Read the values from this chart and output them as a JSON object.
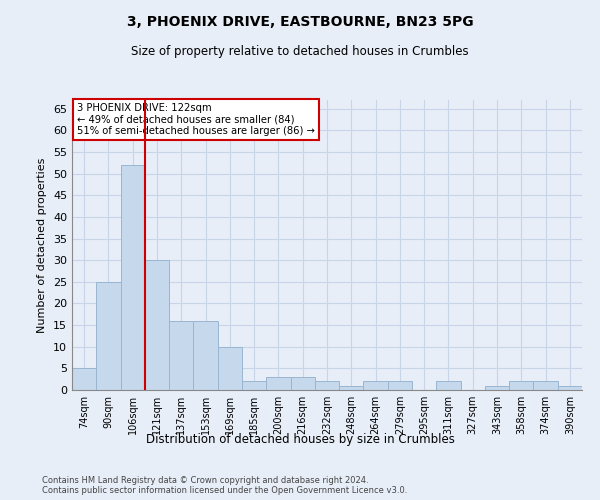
{
  "title_line1": "3, PHOENIX DRIVE, EASTBOURNE, BN23 5PG",
  "title_line2": "Size of property relative to detached houses in Crumbles",
  "xlabel": "Distribution of detached houses by size in Crumbles",
  "ylabel": "Number of detached properties",
  "categories": [
    "74sqm",
    "90sqm",
    "106sqm",
    "121sqm",
    "137sqm",
    "153sqm",
    "169sqm",
    "185sqm",
    "200sqm",
    "216sqm",
    "232sqm",
    "248sqm",
    "264sqm",
    "279sqm",
    "295sqm",
    "311sqm",
    "327sqm",
    "343sqm",
    "358sqm",
    "374sqm",
    "390sqm"
  ],
  "values": [
    5,
    25,
    52,
    30,
    16,
    16,
    10,
    2,
    3,
    3,
    2,
    1,
    2,
    2,
    0,
    2,
    0,
    1,
    2,
    2,
    1
  ],
  "bar_color": "#c5d8ec",
  "bar_edge_color": "#9ab5d0",
  "grid_color": "#c8d4e8",
  "background_color": "#e8eef8",
  "vline_x_index": 3,
  "annotation_text": "3 PHOENIX DRIVE: 122sqm\n← 49% of detached houses are smaller (84)\n51% of semi-detached houses are larger (86) →",
  "annotation_box_color": "#ffffff",
  "annotation_box_edge": "#cc0000",
  "annotation_text_color": "#000000",
  "vline_color": "#cc0000",
  "ylim": [
    0,
    67
  ],
  "yticks": [
    0,
    5,
    10,
    15,
    20,
    25,
    30,
    35,
    40,
    45,
    50,
    55,
    60,
    65
  ],
  "footer_line1": "Contains HM Land Registry data © Crown copyright and database right 2024.",
  "footer_line2": "Contains public sector information licensed under the Open Government Licence v3.0."
}
